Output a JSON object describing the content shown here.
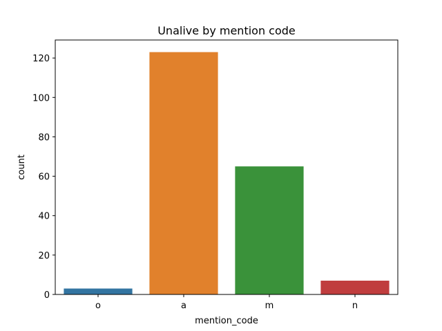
{
  "chart_data": {
    "type": "bar",
    "title": "Unalive by mention code",
    "xlabel": "mention_code",
    "ylabel": "count",
    "categories": [
      "o",
      "a",
      "m",
      "n"
    ],
    "values": [
      3,
      123,
      65,
      7
    ],
    "colors": [
      "#3274a1",
      "#e1812c",
      "#3a923a",
      "#c03d3e"
    ],
    "yticks": [
      0,
      20,
      40,
      60,
      80,
      100,
      120
    ],
    "ylim": [
      0,
      129.15
    ],
    "grid": false,
    "legend": "none"
  }
}
